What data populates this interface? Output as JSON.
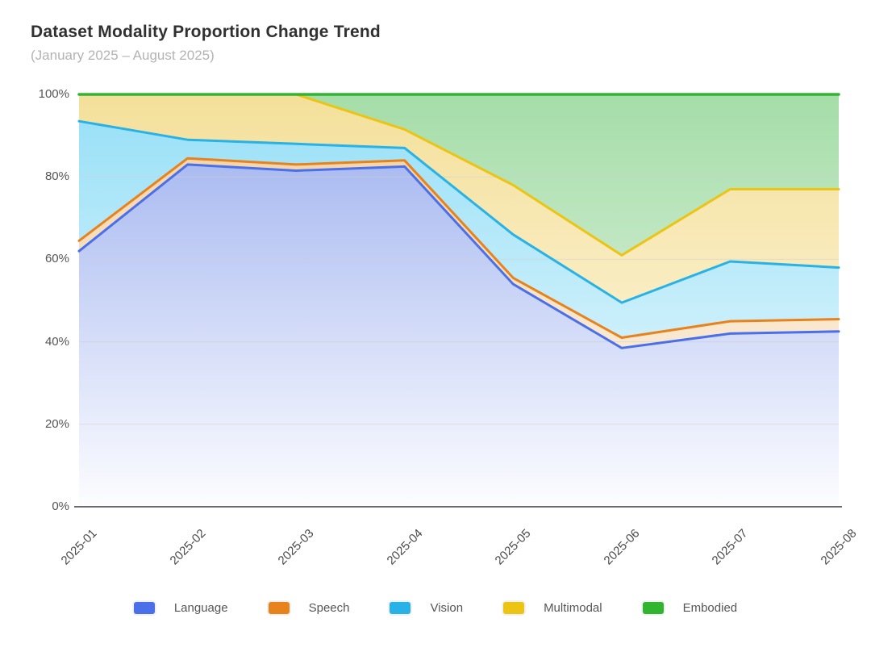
{
  "header": {
    "title": "Dataset Modality Proportion Change Trend",
    "subtitle": "(January 2025 – August 2025)"
  },
  "chart_data": {
    "type": "area",
    "stacked": true,
    "title": "Dataset Modality Proportion Change Trend",
    "subtitle": "(January 2025 – August 2025)",
    "unit": "%",
    "xlabel": "",
    "ylabel": "",
    "ylim": [
      0,
      100
    ],
    "grid": true,
    "legend_position": "bottom",
    "x": [
      "2025-01",
      "2025-02",
      "2025-03",
      "2025-04",
      "2025-05",
      "2025-06",
      "2025-07",
      "2025-08"
    ],
    "y_ticks": [
      {
        "label": "0%",
        "value": 0
      },
      {
        "label": "20%",
        "value": 20
      },
      {
        "label": "40%",
        "value": 40
      },
      {
        "label": "60%",
        "value": 60
      },
      {
        "label": "80%",
        "value": 80
      },
      {
        "label": "100%",
        "value": 100
      }
    ],
    "series": [
      {
        "name": "Language",
        "color": "#4A6FE9",
        "fill_top": "#9AAEEE",
        "fill_bottom": "#FDFDFF",
        "values": [
          62,
          83,
          81.5,
          82.5,
          54,
          38.5,
          42,
          42.5
        ]
      },
      {
        "name": "Speech",
        "color": "#E8821D",
        "fill_top": "#F2CF9F",
        "fill_bottom": "#FEFAF3",
        "values": [
          2.5,
          1.5,
          1.5,
          1.5,
          1.5,
          2.5,
          3,
          3
        ]
      },
      {
        "name": "Vision",
        "color": "#28B2E7",
        "fill_top": "#95DFF7",
        "fill_bottom": "#F3FBFE",
        "values": [
          29,
          4.5,
          5,
          3,
          10.5,
          8.5,
          14.5,
          12.5
        ]
      },
      {
        "name": "Multimodal",
        "color": "#ECC413",
        "fill_top": "#F4E09A",
        "fill_bottom": "#FEFAEC",
        "values": [
          6.5,
          11,
          12,
          4.5,
          12,
          11.5,
          17.5,
          19
        ]
      },
      {
        "name": "Embodied",
        "color": "#30B531",
        "fill_top": "#A5DDA8",
        "fill_bottom": "#EFF8F0",
        "values": [
          0,
          0,
          0,
          8.5,
          22,
          39,
          23,
          23
        ]
      }
    ]
  }
}
